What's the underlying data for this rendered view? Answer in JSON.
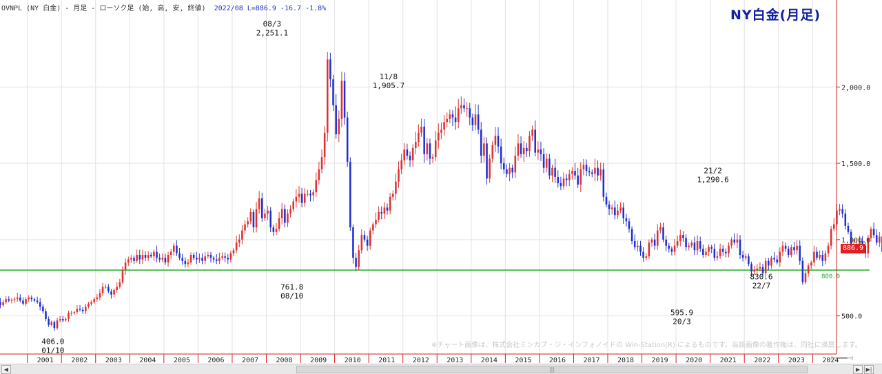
{
  "header": {
    "symbol_text": "OVNPL (NY 白金) - 月足 - ローソク足 (始, 高, 安, 終値)",
    "quote_text": "2022/08  L=886.9  -16.7  -1.8%"
  },
  "title": "NY白金(月足)",
  "credit": "※チャート画像は、株式会社ミンカブ・ジ・インフォノイドの Win-Station(R) によるものです。当該画像の著作権は、同社に帰属します。",
  "current_price_label": "886.9",
  "reference_line_label": "800.0",
  "annotations": [
    {
      "lines": [
        "08/3",
        "2,251.1"
      ],
      "above": true,
      "x": 2008.17,
      "y": 2251.1
    },
    {
      "lines": [
        "11/8",
        "1,905.7"
      ],
      "above": true,
      "x": 2011.58,
      "y": 1905.7
    },
    {
      "lines": [
        "21/2",
        "1,290.6"
      ],
      "above": true,
      "x": 2021.08,
      "y": 1290.6
    },
    {
      "lines": [
        "406.0",
        "01/10"
      ],
      "above": false,
      "x": 2001.75,
      "y": 406.0
    },
    {
      "lines": [
        "761.8",
        "08/10"
      ],
      "above": false,
      "x": 2008.75,
      "y": 761.8
    },
    {
      "lines": [
        "595.9",
        "20/3"
      ],
      "above": false,
      "x": 2020.17,
      "y": 595.9
    },
    {
      "lines": [
        "830.6",
        "22/7"
      ],
      "above": false,
      "x": 2022.5,
      "y": 830.6
    }
  ],
  "chart_data": {
    "type": "candlestick",
    "title": "NY白金(月足)",
    "xlim": [
      2000.2,
      2024.7
    ],
    "ylim": [
      250,
      2570
    ],
    "y_ticks": [
      500,
      1000,
      1500,
      2000
    ],
    "y_tick_labels": [
      "500.0",
      "1,000.0",
      "1,500.0",
      "2,000.0"
    ],
    "x_ticks": [
      2001,
      2002,
      2003,
      2004,
      2005,
      2006,
      2007,
      2008,
      2009,
      2010,
      2011,
      2012,
      2013,
      2014,
      2015,
      2016,
      2017,
      2018,
      2019,
      2020,
      2021,
      2022,
      2023,
      2024
    ],
    "x_tick_labels": [
      "2001",
      "2002",
      "2003",
      "2004",
      "2005",
      "2006",
      "2007",
      "2008",
      "2009",
      "2010",
      "2011",
      "2012",
      "2013",
      "2014",
      "2015",
      "2016",
      "2017",
      "2018",
      "2019",
      "2020",
      "2021",
      "2022",
      "2023",
      "2024"
    ],
    "reference_line": 800,
    "start": [
      2000,
      1
    ],
    "up_color": "#e03030",
    "down_color": "#2030d0",
    "grid": true,
    "close": [
      560,
      590,
      570,
      590,
      610,
      600,
      605,
      612,
      620,
      600,
      580,
      610,
      620,
      610,
      600,
      590,
      560,
      530,
      480,
      440,
      460,
      420,
      470,
      480,
      470,
      480,
      520,
      520,
      525,
      545,
      540,
      530,
      560,
      580,
      590,
      610,
      620,
      650,
      690,
      690,
      660,
      640,
      670,
      690,
      720,
      800,
      850,
      870,
      880,
      860,
      900,
      870,
      900,
      880,
      900,
      890,
      920,
      880,
      870,
      880,
      850,
      900,
      920,
      960,
      910,
      880,
      860,
      840,
      850,
      900,
      880,
      870,
      880,
      860,
      890,
      900,
      880,
      870,
      860,
      880,
      890,
      880,
      870,
      910,
      930,
      980,
      1000,
      1060,
      1100,
      1120,
      1180,
      1080,
      1200,
      1270,
      1140,
      1170,
      1190,
      1080,
      1050,
      1070,
      1140,
      1200,
      1110,
      1170,
      1200,
      1250,
      1280,
      1300,
      1240,
      1300,
      1300,
      1290,
      1310,
      1390,
      1460,
      1540,
      1700,
      2180,
      2050,
      1880,
      1690,
      1790,
      2040,
      1800,
      1510,
      1080,
      880,
      820,
      930,
      1030,
      1000,
      960,
      1060,
      1100,
      1130,
      1180,
      1170,
      1210,
      1190,
      1280,
      1300,
      1380,
      1460,
      1520,
      1590,
      1550,
      1520,
      1600,
      1640,
      1700,
      1740,
      1560,
      1630,
      1530,
      1540,
      1650,
      1700,
      1720,
      1770,
      1790,
      1820,
      1800,
      1770,
      1860,
      1880,
      1860,
      1860,
      1800,
      1750,
      1820,
      1720,
      1550,
      1630,
      1400,
      1530,
      1620,
      1680,
      1610,
      1500,
      1460,
      1430,
      1470,
      1440,
      1550,
      1630,
      1560,
      1600,
      1580,
      1680,
      1720,
      1570,
      1590,
      1560,
      1470,
      1530,
      1420,
      1470,
      1410,
      1370,
      1350,
      1400,
      1390,
      1430,
      1450,
      1420,
      1360,
      1460,
      1490,
      1450,
      1440,
      1430,
      1470,
      1420,
      1460,
      1280,
      1230,
      1200,
      1210,
      1160,
      1190,
      1210,
      1140,
      1120,
      1070,
      990,
      950,
      960,
      920,
      880,
      890,
      980,
      1000,
      960,
      1060,
      1080,
      1000,
      960,
      940,
      920,
      960,
      990,
      1030,
      1010,
      950,
      960,
      980,
      930,
      990,
      940,
      900,
      920,
      950,
      940,
      880,
      890,
      940,
      920,
      910,
      960,
      1000,
      980,
      1000,
      900,
      880,
      890,
      840,
      790,
      800,
      810,
      820,
      780,
      860,
      830,
      880,
      870,
      850,
      920,
      960,
      940,
      900,
      950,
      930,
      960,
      860,
      720,
      780,
      830,
      850,
      920,
      880,
      900,
      860,
      910,
      960,
      1070,
      1100,
      1190,
      1200,
      1170,
      1090,
      1050,
      960,
      960,
      960,
      990,
      960,
      910,
      1010,
      1070,
      1030,
      980,
      1020,
      920,
      900,
      890
    ],
    "name": ""
  }
}
